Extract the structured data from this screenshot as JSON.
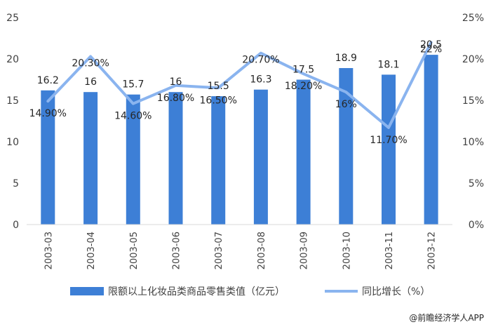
{
  "chart_data": {
    "type": "bar",
    "categories": [
      "2003-03",
      "2003-04",
      "2003-05",
      "2003-06",
      "2003-07",
      "2003-08",
      "2003-09",
      "2003-10",
      "2003-11",
      "2003-12"
    ],
    "series": [
      {
        "name": "限额以上化妆品类商品零售类值（亿元）",
        "type": "bar",
        "axis": "left",
        "values": [
          16.2,
          16,
          15.7,
          16,
          15.5,
          16.3,
          17.5,
          18.9,
          18.1,
          20.5
        ],
        "labels": [
          "16.2",
          "16",
          "15.7",
          "16",
          "15.5",
          "16.3",
          "17.5",
          "18.9",
          "18.1",
          "20.5"
        ],
        "color": "#3d7fd6"
      },
      {
        "name": "同比增长（%）",
        "type": "line",
        "axis": "right",
        "values": [
          14.9,
          20.3,
          14.6,
          16.8,
          16.5,
          20.7,
          18.2,
          16,
          11.7,
          22
        ],
        "labels": [
          "14.90%",
          "20.30%",
          "14.60%",
          "16.80%",
          "16.50%",
          "20.70%",
          "18.20%",
          "16%",
          "11.70%",
          "22%"
        ],
        "color": "#8ab4ef"
      }
    ],
    "ylim_left": [
      0,
      25
    ],
    "yticks_left": [
      "0",
      "5",
      "10",
      "15",
      "20",
      "25"
    ],
    "ylim_right": [
      0,
      25
    ],
    "yticks_right": [
      "0%",
      "5%",
      "10%",
      "15%",
      "20%",
      "25%"
    ],
    "grid": false,
    "legend_position": "bottom"
  },
  "credit": "@前瞻经济学人APP"
}
